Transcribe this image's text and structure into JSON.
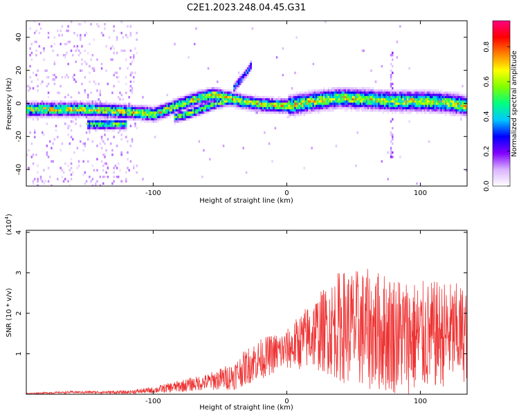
{
  "title": "C2E1.2023.248.04.45.G31",
  "chart_data": [
    {
      "type": "heatmap",
      "xlabel": "Height of straight line (km)",
      "ylabel": "Frequency (Hz)",
      "xlim": [
        -195,
        135
      ],
      "ylim": [
        -50,
        50
      ],
      "x_ticks": [
        -100,
        0,
        100
      ],
      "x_tick_labels": [
        "-100",
        "0",
        "100"
      ],
      "y_ticks": [
        -40,
        -20,
        0,
        20,
        40
      ],
      "y_tick_labels": [
        "-40",
        "-20",
        "0",
        "20",
        "40"
      ],
      "colorbar": {
        "label": "Normalized spectral amplitude",
        "range": [
          0,
          0.95
        ],
        "ticks": [
          0.0,
          0.2,
          0.4,
          0.6,
          0.8
        ],
        "tick_labels": [
          "0.0",
          "0.2",
          "0.4",
          "0.6",
          "0.8"
        ],
        "colors": [
          "#ffffff",
          "#d9b3ff",
          "#8000ff",
          "#0000ff",
          "#00c8ff",
          "#00ff80",
          "#80ff00",
          "#ffff00",
          "#ff8000",
          "#ff0000",
          "#ff0080"
        ]
      },
      "ridges": [
        {
          "name": "main-trace",
          "x": [
            -195,
            -150,
            -110,
            -100,
            -90,
            -70,
            -55,
            -35,
            -20,
            0,
            20,
            40,
            60,
            80,
            100,
            120,
            135
          ],
          "y": [
            -3,
            -3,
            -5,
            -6,
            -3,
            3,
            6,
            2,
            0,
            -1,
            2,
            4,
            3,
            2,
            2,
            1,
            -1
          ],
          "intensity": 0.7
        },
        {
          "name": "lower-branch",
          "x": [
            -150,
            -140,
            -130,
            -120
          ],
          "y": [
            -12,
            -12,
            -12,
            -12
          ],
          "intensity": 0.6
        },
        {
          "name": "secondary-branch",
          "x": [
            -85,
            -75,
            -65,
            -55,
            -45,
            -35
          ],
          "y": [
            -8,
            -6,
            -3,
            0,
            2,
            3
          ],
          "intensity": 0.6
        },
        {
          "name": "upper-streak",
          "x": [
            -40,
            -35,
            -30,
            -27
          ],
          "y": [
            10,
            15,
            20,
            24
          ],
          "intensity": 0.35
        }
      ]
    },
    {
      "type": "line",
      "xlabel": "Height of straight line (km)",
      "ylabel": "SNR (10 * v/v)",
      "multiplier_label": "(x10",
      "multiplier_exponent": "4",
      "multiplier_close": ")",
      "xlim": [
        -195,
        135
      ],
      "ylim": [
        0,
        4.05
      ],
      "x_ticks": [
        -100,
        0,
        100
      ],
      "x_tick_labels": [
        "-100",
        "0",
        "100"
      ],
      "y_ticks": [
        1,
        2,
        3,
        4
      ],
      "y_tick_labels": [
        "1",
        "2",
        "3",
        "4"
      ],
      "line_color": "#ee3333",
      "envelope": {
        "x": [
          -195,
          -160,
          -120,
          -100,
          -80,
          -60,
          -40,
          -25,
          -10,
          0,
          10,
          20,
          30,
          40,
          60,
          80,
          100,
          120,
          135
        ],
        "mean": [
          0.02,
          0.05,
          0.05,
          0.1,
          0.2,
          0.3,
          0.45,
          0.8,
          1.0,
          1.1,
          1.3,
          1.5,
          1.6,
          1.7,
          1.6,
          1.5,
          1.4,
          1.5,
          1.5
        ],
        "amplitude": [
          0.01,
          0.03,
          0.04,
          0.08,
          0.15,
          0.2,
          0.35,
          0.5,
          0.5,
          0.5,
          0.7,
          0.9,
          1.1,
          1.4,
          1.5,
          1.5,
          1.4,
          1.3,
          1.2
        ]
      }
    }
  ]
}
